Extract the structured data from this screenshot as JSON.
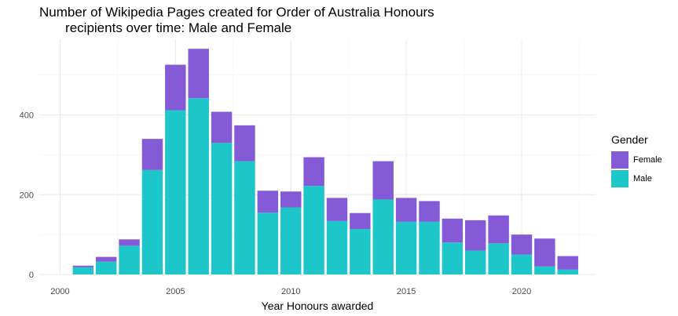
{
  "chart_data": {
    "type": "bar",
    "stacked": true,
    "title": "Number of Wikipedia Pages created for Order of Australia Honours\n       recipients over time: Male and Female",
    "xlabel": "Year Honours awarded",
    "ylabel": "",
    "xlim": [
      1999.1,
      2023.2
    ],
    "ylim": [
      0,
      590
    ],
    "x_ticks": [
      2000,
      2005,
      2010,
      2015,
      2020
    ],
    "y_ticks": [
      0,
      200,
      400
    ],
    "grid": true,
    "legend": {
      "title": "Gender",
      "placement": "right",
      "entries": [
        "Female",
        "Male"
      ]
    },
    "categories": [
      2001,
      2002,
      2003,
      2004,
      2005,
      2006,
      2007,
      2008,
      2009,
      2010,
      2011,
      2012,
      2013,
      2014,
      2015,
      2016,
      2017,
      2018,
      2019,
      2020,
      2021,
      2022
    ],
    "series": [
      {
        "name": "Male",
        "color": "#1CC6C9",
        "values": [
          18,
          32,
          72,
          262,
          412,
          442,
          330,
          284,
          155,
          168,
          222,
          134,
          114,
          188,
          132,
          132,
          80,
          60,
          78,
          50,
          20,
          12
        ]
      },
      {
        "name": "Female",
        "color": "#845AD7",
        "values": [
          4,
          12,
          16,
          78,
          114,
          124,
          78,
          90,
          55,
          40,
          72,
          58,
          40,
          96,
          60,
          52,
          60,
          76,
          70,
          50,
          70,
          34
        ]
      }
    ]
  }
}
